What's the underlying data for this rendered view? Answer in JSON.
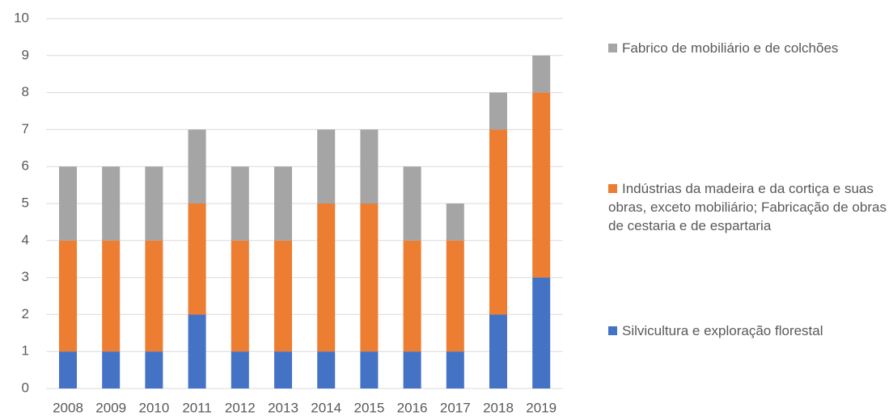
{
  "chart_data": {
    "type": "stacked_bar",
    "categories": [
      "2008",
      "2009",
      "2010",
      "2011",
      "2012",
      "2013",
      "2014",
      "2015",
      "2016",
      "2017",
      "2018",
      "2019"
    ],
    "series": [
      {
        "name": "Silvicultura e exploração florestal",
        "color": "#4472c4",
        "values": [
          1,
          1,
          1,
          2,
          1,
          1,
          1,
          1,
          1,
          1,
          2,
          3
        ]
      },
      {
        "name": "Indústrias da madeira e da cortiça e suas obras, exceto mobiliário; Fabricação de obras de cestaria e de espartaria",
        "color": "#ed7d31",
        "values": [
          3,
          3,
          3,
          3,
          3,
          3,
          4,
          4,
          3,
          3,
          5,
          5
        ]
      },
      {
        "name": "Fabrico de mobiliário e de colchões",
        "color": "#a5a5a5",
        "values": [
          2,
          2,
          2,
          2,
          2,
          2,
          2,
          2,
          2,
          1,
          1,
          1
        ]
      }
    ],
    "ylim": [
      0,
      10
    ],
    "yticks": [
      0,
      1,
      2,
      3,
      4,
      5,
      6,
      7,
      8,
      9,
      10
    ],
    "grid": true,
    "legend": "right"
  }
}
